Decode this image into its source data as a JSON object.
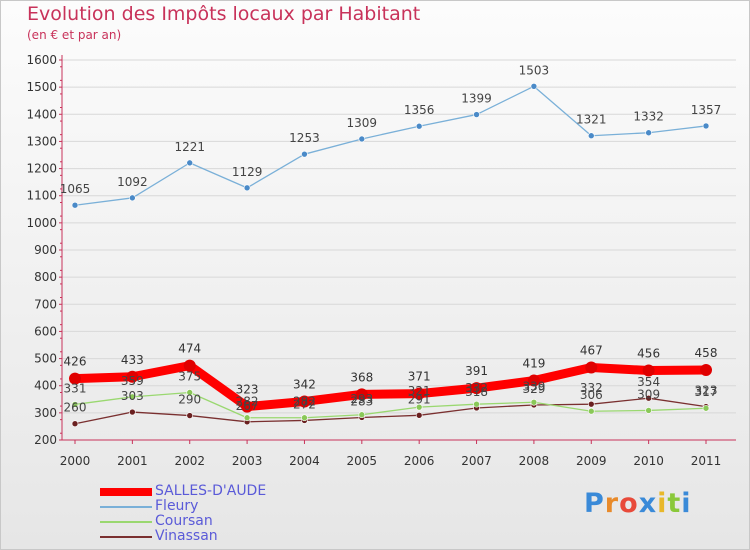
{
  "header": {
    "title": "Evolution des Impôts locaux par Habitant",
    "subtitle": "(en € et par an)"
  },
  "chart_data": {
    "type": "line",
    "title": "Evolution des Impôts locaux par Habitant",
    "subtitle": "(en € et par an)",
    "xlabel": "",
    "ylabel": "",
    "x": [
      "2000",
      "2001",
      "2002",
      "2003",
      "2004",
      "2005",
      "2006",
      "2007",
      "2008",
      "2009",
      "2010",
      "2011"
    ],
    "ylim": [
      200,
      1600
    ],
    "yticks": [
      "200",
      "300",
      "400",
      "500",
      "600",
      "700",
      "800",
      "900",
      "1000",
      "1100",
      "1200",
      "1300",
      "1400",
      "1500",
      "1600"
    ],
    "grid": true,
    "legend_position": "bottom-left",
    "series": [
      {
        "name": "SALLES-D'AUDE",
        "color": "#ff0000",
        "values": [
          426,
          433,
          474,
          323,
          342,
          368,
          371,
          391,
          419,
          467,
          456,
          458
        ]
      },
      {
        "name": "Fleury",
        "color": "#7ab0d8",
        "values": [
          1065,
          1092,
          1221,
          1129,
          1253,
          1309,
          1356,
          1399,
          1503,
          1321,
          1332,
          1357
        ]
      },
      {
        "name": "Coursan",
        "color": "#9ad870",
        "values": [
          331,
          359,
          375,
          282,
          282,
          293,
          321,
          332,
          339,
          306,
          309,
          317
        ]
      },
      {
        "name": "Vinassan",
        "color": "#7a3030",
        "values": [
          260,
          303,
          290,
          267,
          272,
          283,
          291,
          318,
          329,
          332,
          354,
          323
        ]
      }
    ]
  },
  "logo": {
    "letters": [
      "P",
      "r",
      "o",
      "x",
      "i",
      "t",
      "i"
    ],
    "colors": [
      "#3a8ad8",
      "#e88a2a",
      "#e84a3a",
      "#3a8ad8",
      "#e8b82a",
      "#8ac83a",
      "#3a8ad8"
    ]
  }
}
